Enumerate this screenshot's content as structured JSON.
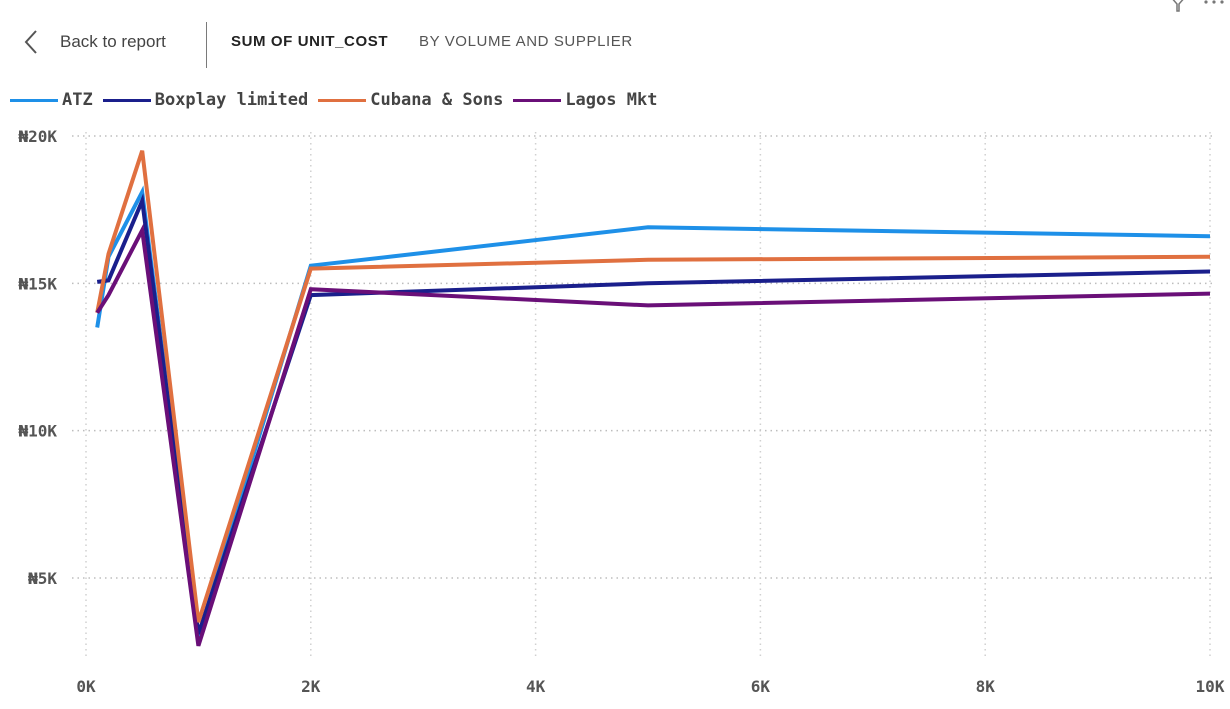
{
  "header": {
    "back_label": "Back to report",
    "title": "SUM OF UNIT_COST",
    "subtitle": "BY VOLUME AND SUPPLIER"
  },
  "icons": {
    "back": "chevron-left-icon",
    "filter": "filter-icon",
    "more": "more-options-icon"
  },
  "chart_data": {
    "type": "line",
    "title": "SUM OF UNIT_COST",
    "subtitle": "BY VOLUME AND SUPPLIER",
    "xlabel": "",
    "ylabel": "",
    "x": [
      100,
      200,
      500,
      1000,
      2000,
      5000,
      10000
    ],
    "xlim": [
      0,
      10000
    ],
    "ylim": [
      1500,
      20000
    ],
    "x_ticks": [
      0,
      2000,
      4000,
      6000,
      8000,
      10000
    ],
    "x_tick_labels": [
      "0K",
      "2K",
      "4K",
      "6K",
      "8K",
      "10K"
    ],
    "y_ticks": [
      5000,
      10000,
      15000,
      20000
    ],
    "y_tick_labels": [
      "₦5K",
      "₦10K",
      "₦15K",
      "₦20K"
    ],
    "grid": true,
    "legend_position": "top-left",
    "series": [
      {
        "name": "ATZ",
        "color": "#1E90E8",
        "values": [
          13500,
          15900,
          18100,
          3000,
          15600,
          16900,
          16600
        ]
      },
      {
        "name": "Boxplay limited",
        "color": "#1A1F8C",
        "values": [
          15050,
          15100,
          17800,
          3100,
          14600,
          15000,
          15400
        ]
      },
      {
        "name": "Cubana & Sons",
        "color": "#E07040",
        "values": [
          14000,
          16000,
          19500,
          3500,
          15500,
          15800,
          15900
        ]
      },
      {
        "name": "Lagos Mkt",
        "color": "#6A0F78",
        "values": [
          14000,
          14600,
          16800,
          2700,
          14800,
          14250,
          14650
        ]
      }
    ]
  }
}
